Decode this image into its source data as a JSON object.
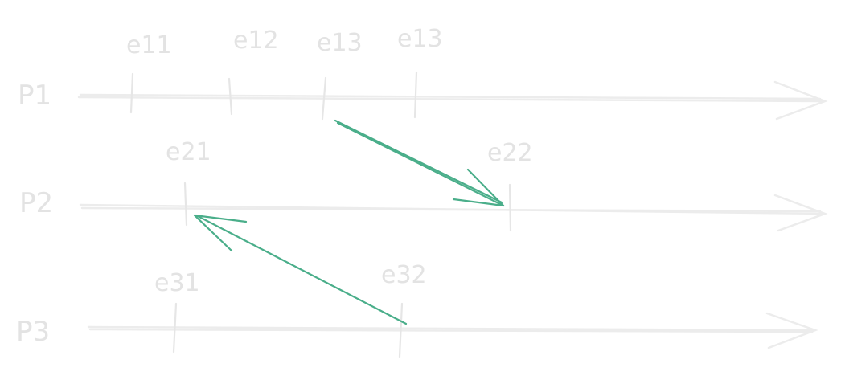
{
  "processes": [
    {
      "id": "P1",
      "label": "P1",
      "events": [
        "e11",
        "e12",
        "e13",
        "e13"
      ]
    },
    {
      "id": "P2",
      "label": "P2",
      "events": [
        "e21",
        "e22"
      ]
    },
    {
      "id": "P3",
      "label": "P3",
      "events": [
        "e31",
        "e32"
      ]
    }
  ],
  "messages": [
    {
      "from": "e13",
      "to": "e22"
    },
    {
      "from": "e32",
      "to": "e21"
    }
  ],
  "colors": {
    "timeline": "#ececec",
    "label": "#e3e3e3",
    "message_arrow": "#4aae8a"
  }
}
